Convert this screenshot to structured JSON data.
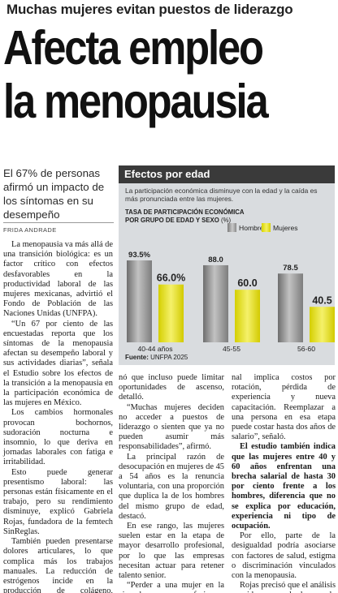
{
  "kicker": "Muchas mujeres evitan puestos de liderazgo",
  "headline": {
    "line1": "Afecta empleo",
    "line2": "la menopausia"
  },
  "deck": "El 67% de personas afirmó un impacto de los síntomas en su desempeño",
  "byline": "FRIDA ANDRADE",
  "graphic": {
    "title": "Efectos por edad",
    "intro": "La participación económica disminuye con la edad y la caída es más pronunciada entre las mujeres.",
    "subtitle": "TASA DE PARTICIPACIÓN ECONÓMICA POR GRUPO DE EDAD Y SEXO",
    "unit": "(%)",
    "legend": {
      "men": "Hombres",
      "women": "Mujeres"
    },
    "source_label": "Fuente:",
    "source_text": "UNFPA 2025"
  },
  "chart_data": {
    "type": "bar",
    "title": "TASA DE PARTICIPACIÓN ECONÓMICA POR GRUPO DE EDAD Y SEXO (%)",
    "categories": [
      "40-44 años",
      "45-55",
      "56-60"
    ],
    "series": [
      {
        "name": "Hombres",
        "values": [
          93.5,
          88.0,
          78.5
        ],
        "labels": [
          "93.5%",
          "88.0",
          "78.5"
        ],
        "color": "#9a9a9a"
      },
      {
        "name": "Mujeres",
        "values": [
          66.0,
          60.0,
          40.5
        ],
        "labels": [
          "66.0%",
          "60.0",
          "40.5"
        ],
        "color": "#efe936"
      }
    ],
    "ylim": [
      0,
      100
    ]
  },
  "body": {
    "col1": [
      "La menopausia va más allá de una transición biológica: es un factor crítico con efectos desfavorables en la productividad laboral de las mujeres mexicanas, advirtió el Fondo de Población de las Naciones Unidas (UNFPA).",
      "“Un 67 por ciento de las encuestadas reporta que los síntomas de la menopausia afectan su desempeño laboral y sus actividades diarias”, señala el Estudio sobre los efectos de la transición a la menopausia en la participación económica de las mujeres en México.",
      "Los cambios hormonales provocan bochornos, sudoración nocturna e insomnio, lo que deriva en jornadas laborales con fatiga e irritabilidad.",
      "Esto puede generar presentismo laboral: las personas están físicamente en el trabajo, pero su rendimiento disminuye, explicó Gabriela Rojas, fundadora de la femtech SinReglas.",
      "También pueden presentarse dolores articulares, lo que complica más los trabajos manuales. La reducción de estrógenos incide en la producción de colágeno, generando un efecto domi-"
    ],
    "col2": [
      "nó que incluso puede limitar oportunidades de ascenso, detalló.",
      "“Muchas mujeres deciden no acceder a puestos de liderazgo o sienten que ya no pueden asumir más responsabilidades”, afirmó.",
      "La principal razón de desocupación en mujeres de 45 a 54 años es la renuncia voluntaria, con una proporción que duplica la de los hombres del mismo grupo de edad, destacó.",
      "En ese rango, las mujeres suelen estar en la etapa de mayor desarrollo profesional, por lo que las empresas necesitan actuar para retener talento senior.",
      "“Perder a una mujer en la cima de su carrera profesio-"
    ],
    "col3_p1": "nal implica costos por rotación, pérdida de experiencia y nueva capacitación. Reemplazar a una persona en esa etapa puede costar hasta dos años de salario”, señaló.",
    "col3_p2": "El estudio también indica que las mujeres entre 40 y 60 años enfrentan una brecha salarial de hasta 30 por ciento frente a los hombres, diferencia que no se explica por educación, experiencia ni tipo de ocupación.",
    "col3_p3": "Por ello, parte de la desigualdad podría asociarse con factores de salud, estigma o discriminación vinculados con la menopausia.",
    "col3_p4": "Rojas precisó que el análisis considera desde la perimenopausia, etapa previa a la menopausia."
  }
}
